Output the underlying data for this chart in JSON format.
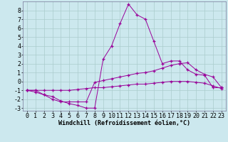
{
  "bg_color": "#cce8ee",
  "line_color": "#990099",
  "grid_color": "#aacccc",
  "xlabel": "Windchill (Refroidissement éolien,°C)",
  "xlim": [
    -0.5,
    23.5
  ],
  "ylim": [
    -3.3,
    9.0
  ],
  "yticks": [
    -3,
    -2,
    -1,
    0,
    1,
    2,
    3,
    4,
    5,
    6,
    7,
    8
  ],
  "xticks": [
    0,
    1,
    2,
    3,
    4,
    5,
    6,
    7,
    8,
    9,
    10,
    11,
    12,
    13,
    14,
    15,
    16,
    17,
    18,
    19,
    20,
    21,
    22,
    23
  ],
  "line1_x": [
    0,
    1,
    2,
    3,
    4,
    5,
    6,
    7,
    8,
    9,
    10,
    11,
    12,
    13,
    14,
    15,
    16,
    17,
    18,
    19,
    20,
    21,
    22,
    23
  ],
  "line1_y": [
    -1,
    -1,
    -1.5,
    -1.7,
    -2.2,
    -2.5,
    -2.7,
    -3.0,
    -3.0,
    2.5,
    4.0,
    6.5,
    8.7,
    7.5,
    7.0,
    4.5,
    2.0,
    2.3,
    2.3,
    1.3,
    0.8,
    0.7,
    -0.7,
    -0.7
  ],
  "line2_x": [
    0,
    1,
    2,
    3,
    4,
    5,
    6,
    7,
    8,
    9,
    10,
    11,
    12,
    13,
    14,
    15,
    16,
    17,
    18,
    19,
    20,
    21,
    22,
    23
  ],
  "line2_y": [
    -1,
    -1.2,
    -1.5,
    -2.0,
    -2.3,
    -2.3,
    -2.3,
    -2.3,
    -0.1,
    0.1,
    0.3,
    0.5,
    0.7,
    0.9,
    1.0,
    1.2,
    1.5,
    1.8,
    2.0,
    2.1,
    1.3,
    0.8,
    0.5,
    -0.7
  ],
  "line3_x": [
    0,
    1,
    2,
    3,
    4,
    5,
    6,
    7,
    8,
    9,
    10,
    11,
    12,
    13,
    14,
    15,
    16,
    17,
    18,
    19,
    20,
    21,
    22,
    23
  ],
  "line3_y": [
    -1,
    -1,
    -1,
    -1,
    -1,
    -1,
    -0.9,
    -0.8,
    -0.7,
    -0.7,
    -0.6,
    -0.5,
    -0.4,
    -0.3,
    -0.3,
    -0.2,
    -0.1,
    0.0,
    0.0,
    0.0,
    -0.1,
    -0.2,
    -0.5,
    -0.8
  ],
  "xlabel_fontsize": 6,
  "tick_fontsize": 6
}
